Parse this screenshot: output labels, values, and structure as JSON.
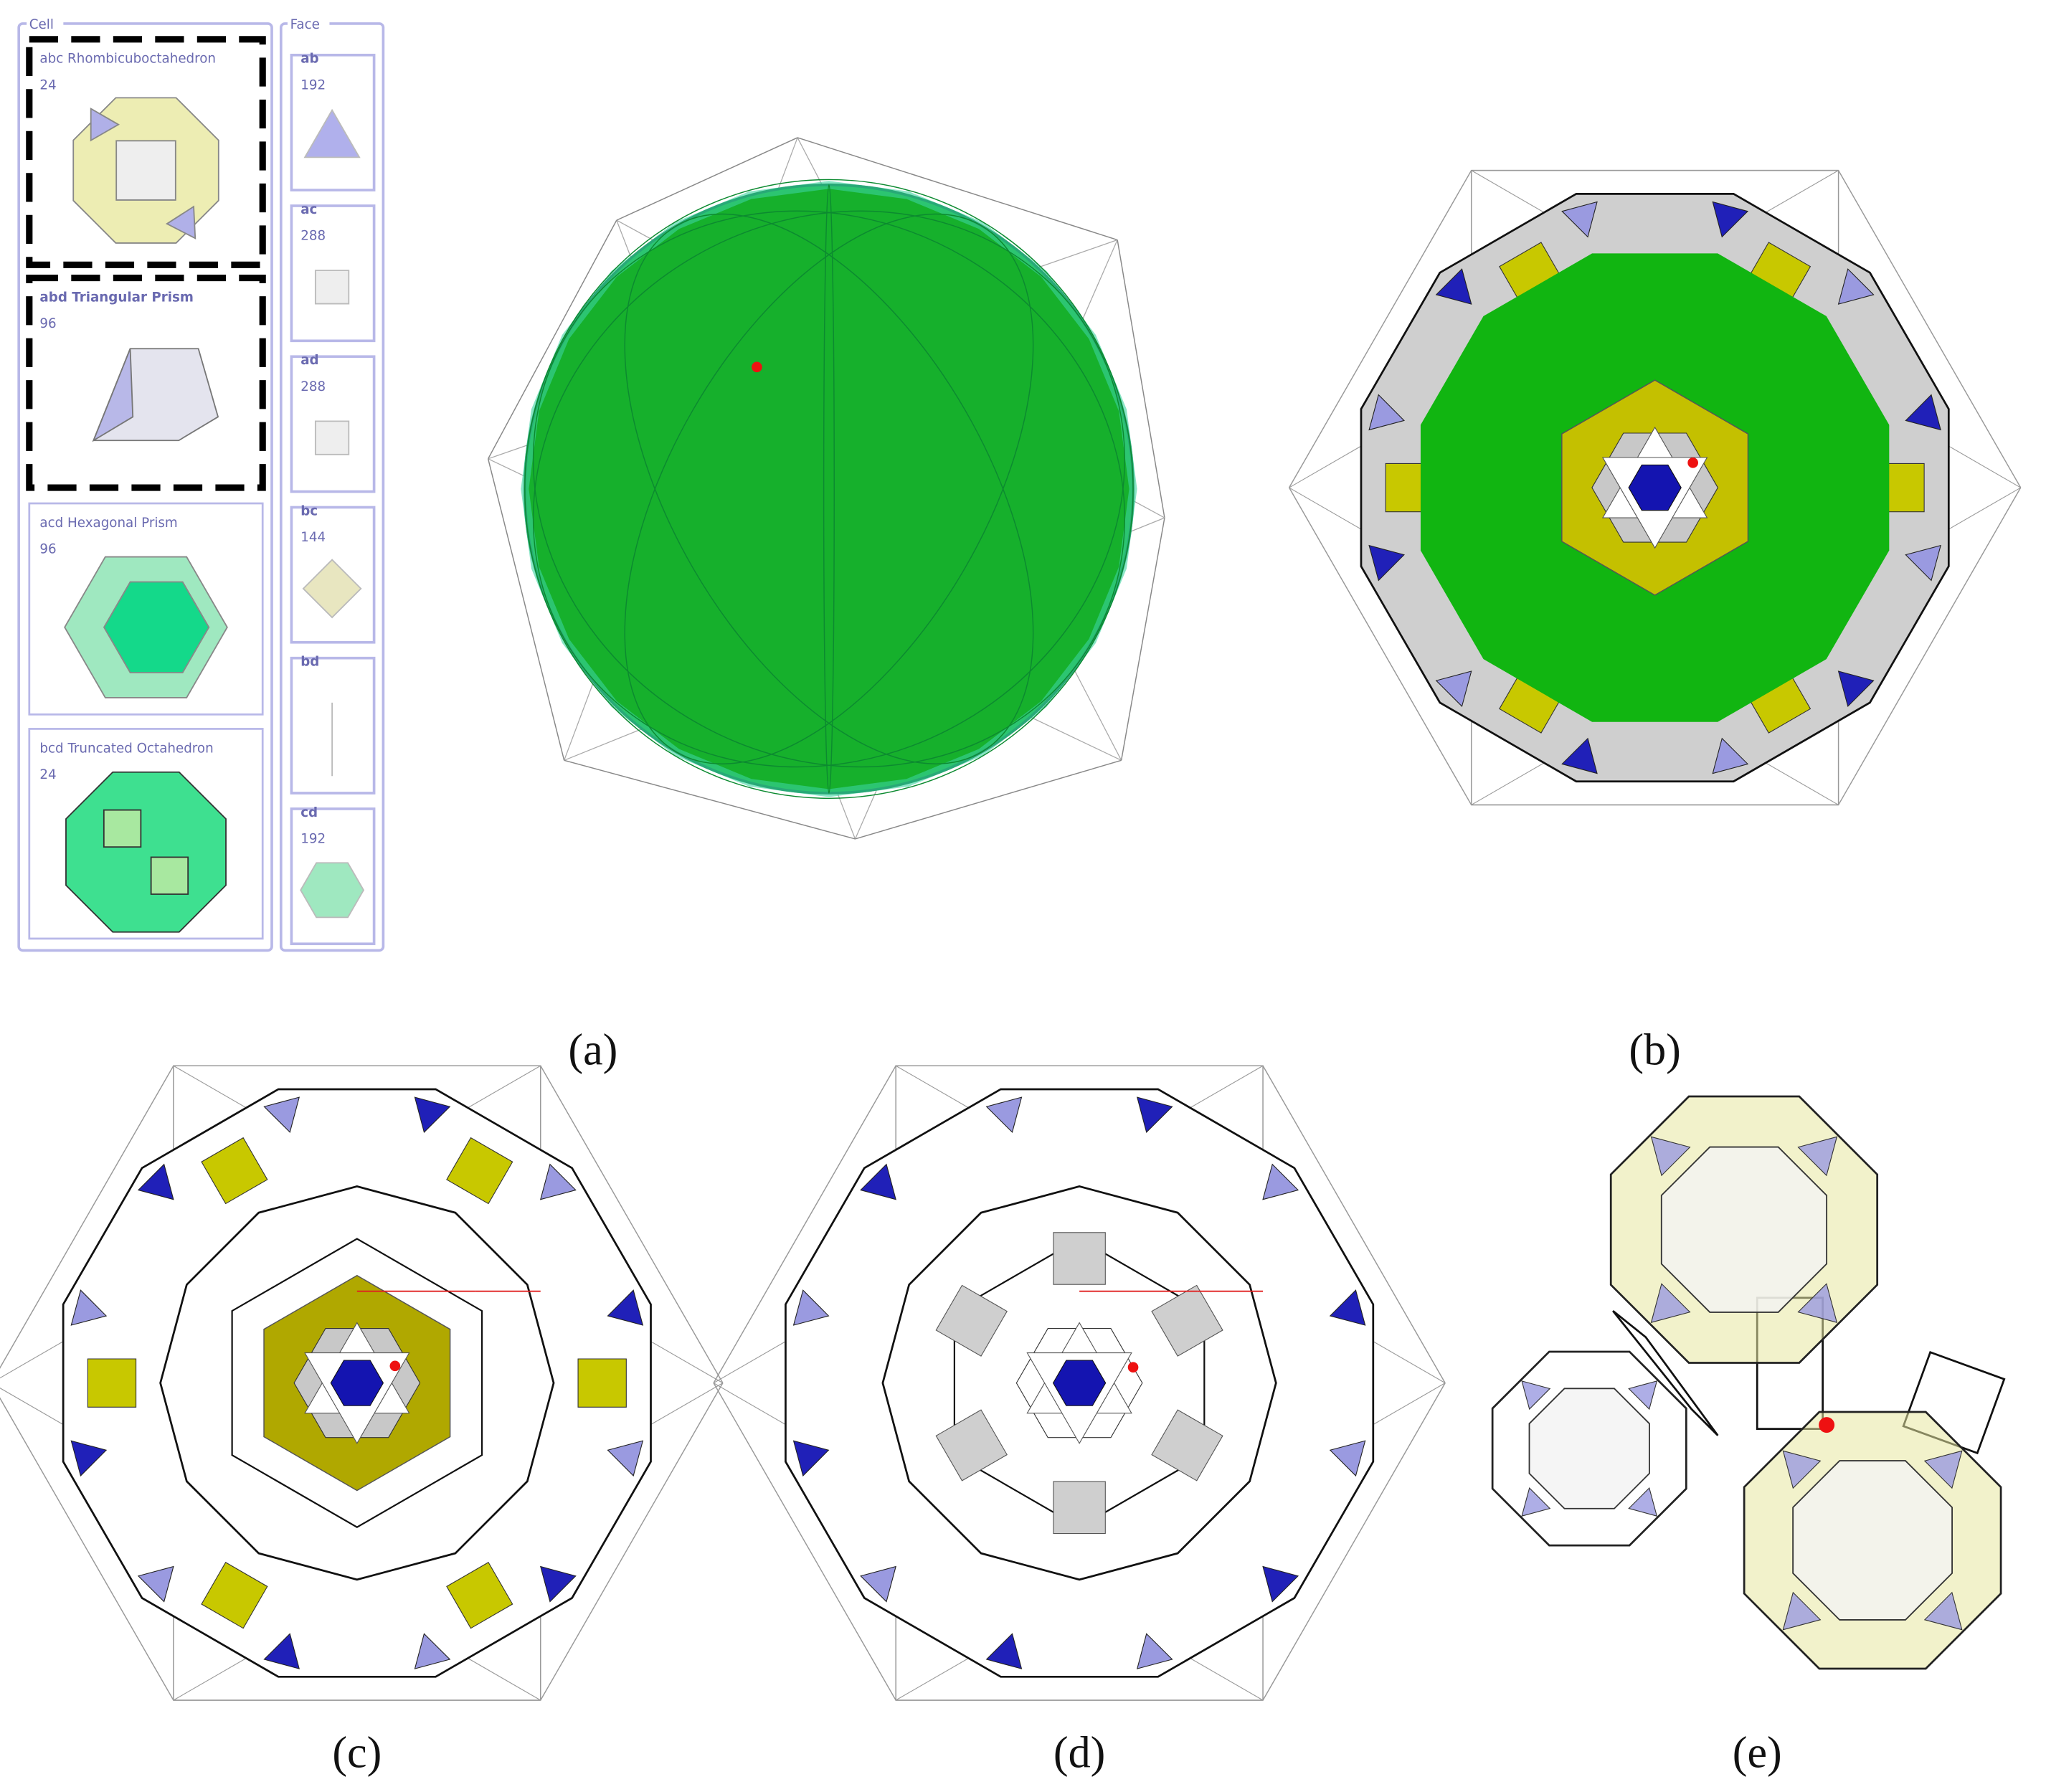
{
  "cell_panel": {
    "title": "Cell",
    "cells": [
      {
        "label": "abc Rhombicuboctahedron",
        "count": 24
      },
      {
        "label": "abd Triangular Prism",
        "count": 96
      },
      {
        "label": "acd Hexagonal Prism",
        "count": 96
      },
      {
        "label": "bcd Truncated Octahedron",
        "count": 24
      }
    ]
  },
  "face_panel": {
    "title": "Face",
    "faces": [
      {
        "label": "ab",
        "count": 192
      },
      {
        "label": "ac",
        "count": 288
      },
      {
        "label": "ad",
        "count": 288
      },
      {
        "label": "bc",
        "count": 144
      },
      {
        "label": "bd"
      },
      {
        "label": "cd",
        "count": 192
      }
    ]
  },
  "figure_labels": [
    "(a)",
    "(b)",
    "(c)",
    "(d)",
    "(e)"
  ]
}
